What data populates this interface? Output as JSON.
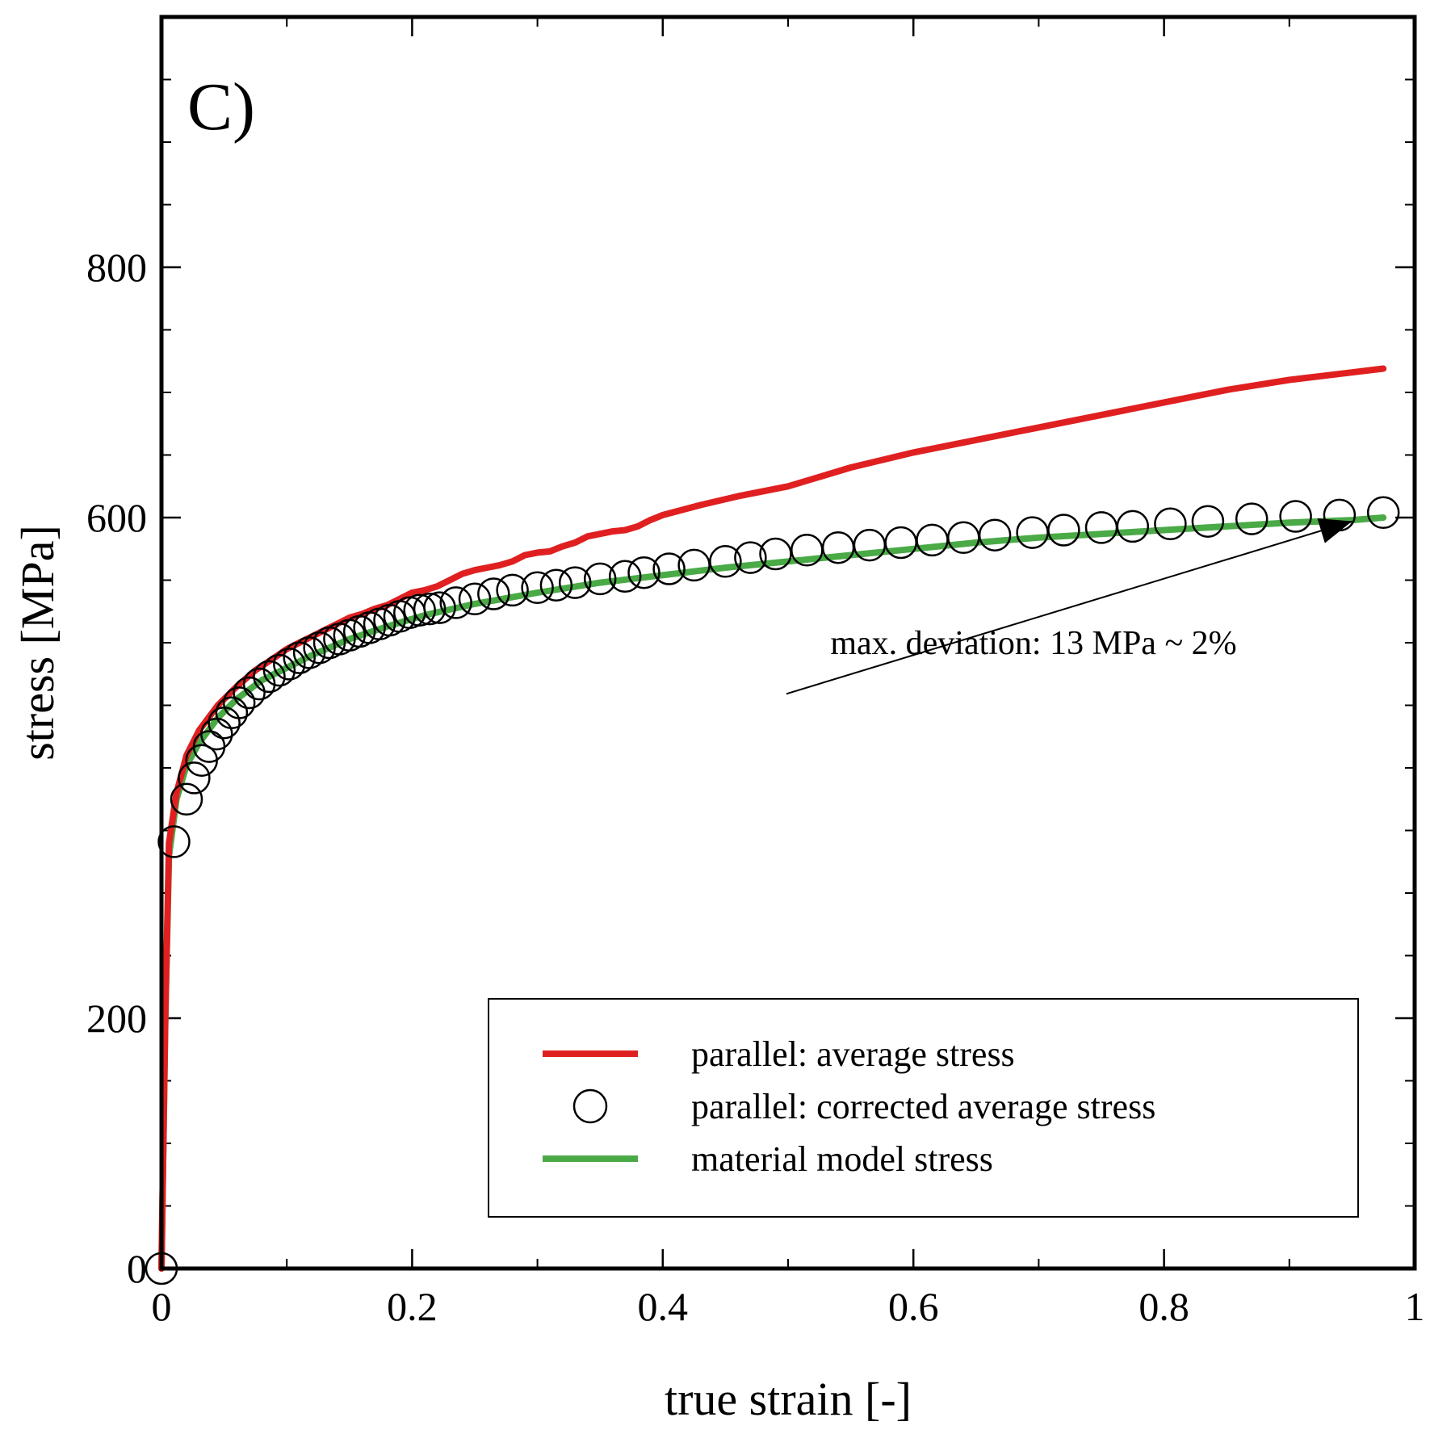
{
  "chart_data": {
    "type": "line",
    "panel_label": "C)",
    "xlabel": "true strain [-]",
    "ylabel": "stress [MPa]",
    "xlim": [
      0,
      1
    ],
    "ylim": [
      0,
      1000
    ],
    "x_ticks": [
      0,
      0.2,
      0.4,
      0.6,
      0.8,
      1
    ],
    "x_tick_labels": [
      "0",
      "0.2",
      "0.4",
      "0.6",
      "0.8",
      "1"
    ],
    "y_ticks": [
      0,
      200,
      600,
      800
    ],
    "y_tick_labels": [
      "0",
      "200",
      "600",
      "800"
    ],
    "y_minor_step": 50,
    "x_minor_step": 0.1,
    "grid": false,
    "legend_position": "bottom-right",
    "annotation": {
      "text": "max. deviation: 13 MPa ~ 2%",
      "point_x": 0.95,
      "point_y": 597,
      "text_x": 0.46,
      "text_y": 454
    },
    "series": [
      {
        "name": "parallel: average stress",
        "style": "line",
        "color": "#e02020",
        "x": [
          0,
          0.003,
          0.006,
          0.012,
          0.02,
          0.03,
          0.045,
          0.06,
          0.075,
          0.09,
          0.1,
          0.11,
          0.12,
          0.13,
          0.14,
          0.15,
          0.16,
          0.17,
          0.18,
          0.19,
          0.2,
          0.21,
          0.22,
          0.23,
          0.24,
          0.25,
          0.26,
          0.27,
          0.28,
          0.29,
          0.3,
          0.31,
          0.32,
          0.33,
          0.34,
          0.35,
          0.36,
          0.37,
          0.38,
          0.39,
          0.4,
          0.43,
          0.46,
          0.5,
          0.55,
          0.6,
          0.65,
          0.7,
          0.75,
          0.8,
          0.85,
          0.9,
          0.95,
          0.975
        ],
        "y": [
          0,
          200,
          340,
          380,
          410,
          430,
          450,
          465,
          478,
          488,
          495,
          500,
          505,
          510,
          515,
          520,
          523,
          527,
          530,
          535,
          540,
          542,
          545,
          550,
          555,
          558,
          560,
          562,
          565,
          570,
          572,
          573,
          577,
          580,
          585,
          587,
          589,
          590,
          593,
          598,
          602,
          610,
          617,
          625,
          640,
          652,
          662,
          672,
          682,
          692,
          702,
          710,
          716,
          719
        ]
      },
      {
        "name": "parallel: corrected average stress",
        "style": "markers",
        "marker": "open-circle",
        "color": "#000000",
        "x": [
          0,
          0.01,
          0.02,
          0.026,
          0.032,
          0.038,
          0.044,
          0.05,
          0.056,
          0.062,
          0.07,
          0.078,
          0.086,
          0.094,
          0.102,
          0.11,
          0.118,
          0.126,
          0.134,
          0.142,
          0.15,
          0.158,
          0.166,
          0.174,
          0.182,
          0.19,
          0.198,
          0.206,
          0.214,
          0.222,
          0.235,
          0.25,
          0.265,
          0.28,
          0.3,
          0.315,
          0.33,
          0.35,
          0.37,
          0.385,
          0.405,
          0.425,
          0.45,
          0.47,
          0.49,
          0.515,
          0.54,
          0.565,
          0.59,
          0.615,
          0.64,
          0.665,
          0.695,
          0.72,
          0.75,
          0.775,
          0.805,
          0.835,
          0.87,
          0.905,
          0.94,
          0.975
        ],
        "y": [
          0,
          341,
          375,
          392,
          406,
          417,
          427,
          436,
          444,
          452,
          460,
          467,
          473,
          478,
          483,
          488,
          492,
          496,
          500,
          503,
          506,
          509,
          512,
          515,
          518,
          521,
          524,
          526,
          527,
          528,
          532,
          535,
          539,
          542,
          544,
          546,
          548,
          551,
          553,
          556,
          559,
          562,
          565,
          568,
          571,
          574,
          576,
          578,
          580,
          582,
          584,
          586,
          588,
          590,
          592,
          593,
          595,
          597,
          599,
          601,
          602,
          604
        ]
      },
      {
        "name": "material model stress",
        "style": "line",
        "color": "#4aaa46",
        "x": [
          0,
          0.003,
          0.006,
          0.012,
          0.02,
          0.03,
          0.045,
          0.06,
          0.08,
          0.1,
          0.12,
          0.15,
          0.18,
          0.21,
          0.25,
          0.3,
          0.35,
          0.4,
          0.45,
          0.5,
          0.55,
          0.6,
          0.65,
          0.7,
          0.75,
          0.8,
          0.85,
          0.9,
          0.95,
          0.975
        ],
        "y": [
          0,
          200,
          330,
          375,
          402,
          420,
          440,
          455,
          470,
          480,
          490,
          503,
          513,
          522,
          531,
          540,
          548,
          554,
          560,
          565,
          570,
          575,
          580,
          584,
          587,
          590,
          593,
          596,
          598,
          600
        ]
      }
    ]
  }
}
